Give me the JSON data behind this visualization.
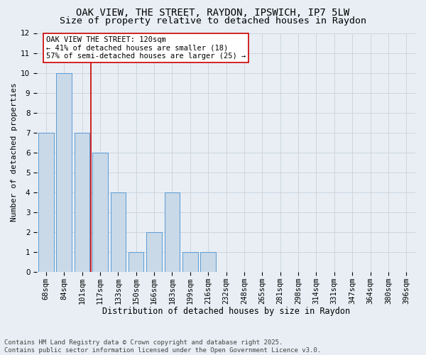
{
  "title1": "OAK VIEW, THE STREET, RAYDON, IPSWICH, IP7 5LW",
  "title2": "Size of property relative to detached houses in Raydon",
  "xlabel": "Distribution of detached houses by size in Raydon",
  "ylabel": "Number of detached properties",
  "categories": [
    "68sqm",
    "84sqm",
    "101sqm",
    "117sqm",
    "133sqm",
    "150sqm",
    "166sqm",
    "183sqm",
    "199sqm",
    "216sqm",
    "232sqm",
    "248sqm",
    "265sqm",
    "281sqm",
    "298sqm",
    "314sqm",
    "331sqm",
    "347sqm",
    "364sqm",
    "380sqm",
    "396sqm"
  ],
  "values": [
    7,
    10,
    7,
    6,
    4,
    1,
    2,
    4,
    1,
    1,
    0,
    0,
    0,
    0,
    0,
    0,
    0,
    0,
    0,
    0,
    0
  ],
  "bar_color": "#c9d9e8",
  "bar_edge_color": "#5b9bd5",
  "grid_color": "#ccd6e0",
  "background_color": "#e8eef4",
  "red_line_x": 2.5,
  "annotation_text": "OAK VIEW THE STREET: 120sqm\n← 41% of detached houses are smaller (18)\n57% of semi-detached houses are larger (25) →",
  "annotation_box_color": "#ffffff",
  "annotation_box_edge": "#cc0000",
  "red_line_color": "#cc0000",
  "ylim": [
    0,
    12
  ],
  "yticks": [
    0,
    1,
    2,
    3,
    4,
    5,
    6,
    7,
    8,
    9,
    10,
    11,
    12
  ],
  "footer": "Contains HM Land Registry data © Crown copyright and database right 2025.\nContains public sector information licensed under the Open Government Licence v3.0.",
  "title1_fontsize": 10,
  "title2_fontsize": 9.5,
  "xlabel_fontsize": 8.5,
  "ylabel_fontsize": 8,
  "tick_fontsize": 7.5,
  "annotation_fontsize": 7.5,
  "footer_fontsize": 6.5
}
